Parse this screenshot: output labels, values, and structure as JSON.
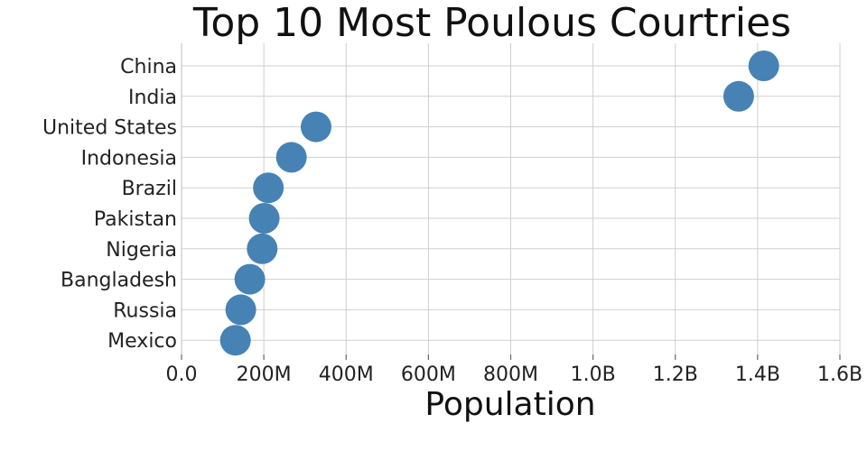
{
  "chart_data": {
    "type": "scatter",
    "title": "Top 10 Most Poulous Courtries",
    "xlabel": "Population",
    "ylabel": "",
    "xlim": [
      0,
      1600000000
    ],
    "x_ticks": [
      0,
      200000000,
      400000000,
      600000000,
      800000000,
      1000000000,
      1200000000,
      1400000000,
      1600000000
    ],
    "x_tick_labels": [
      "0.0",
      "200M",
      "400M",
      "600M",
      "800M",
      "1.0B",
      "1.2B",
      "1.4B",
      "1.6B"
    ],
    "grid": true,
    "color": "#4682b4",
    "categories": [
      "China",
      "India",
      "United States",
      "Indonesia",
      "Brazil",
      "Pakistan",
      "Nigeria",
      "Bangladesh",
      "Russia",
      "Mexico"
    ],
    "values": [
      1415000000,
      1354000000,
      327000000,
      267000000,
      211000000,
      201000000,
      196000000,
      166000000,
      144000000,
      131000000
    ]
  }
}
